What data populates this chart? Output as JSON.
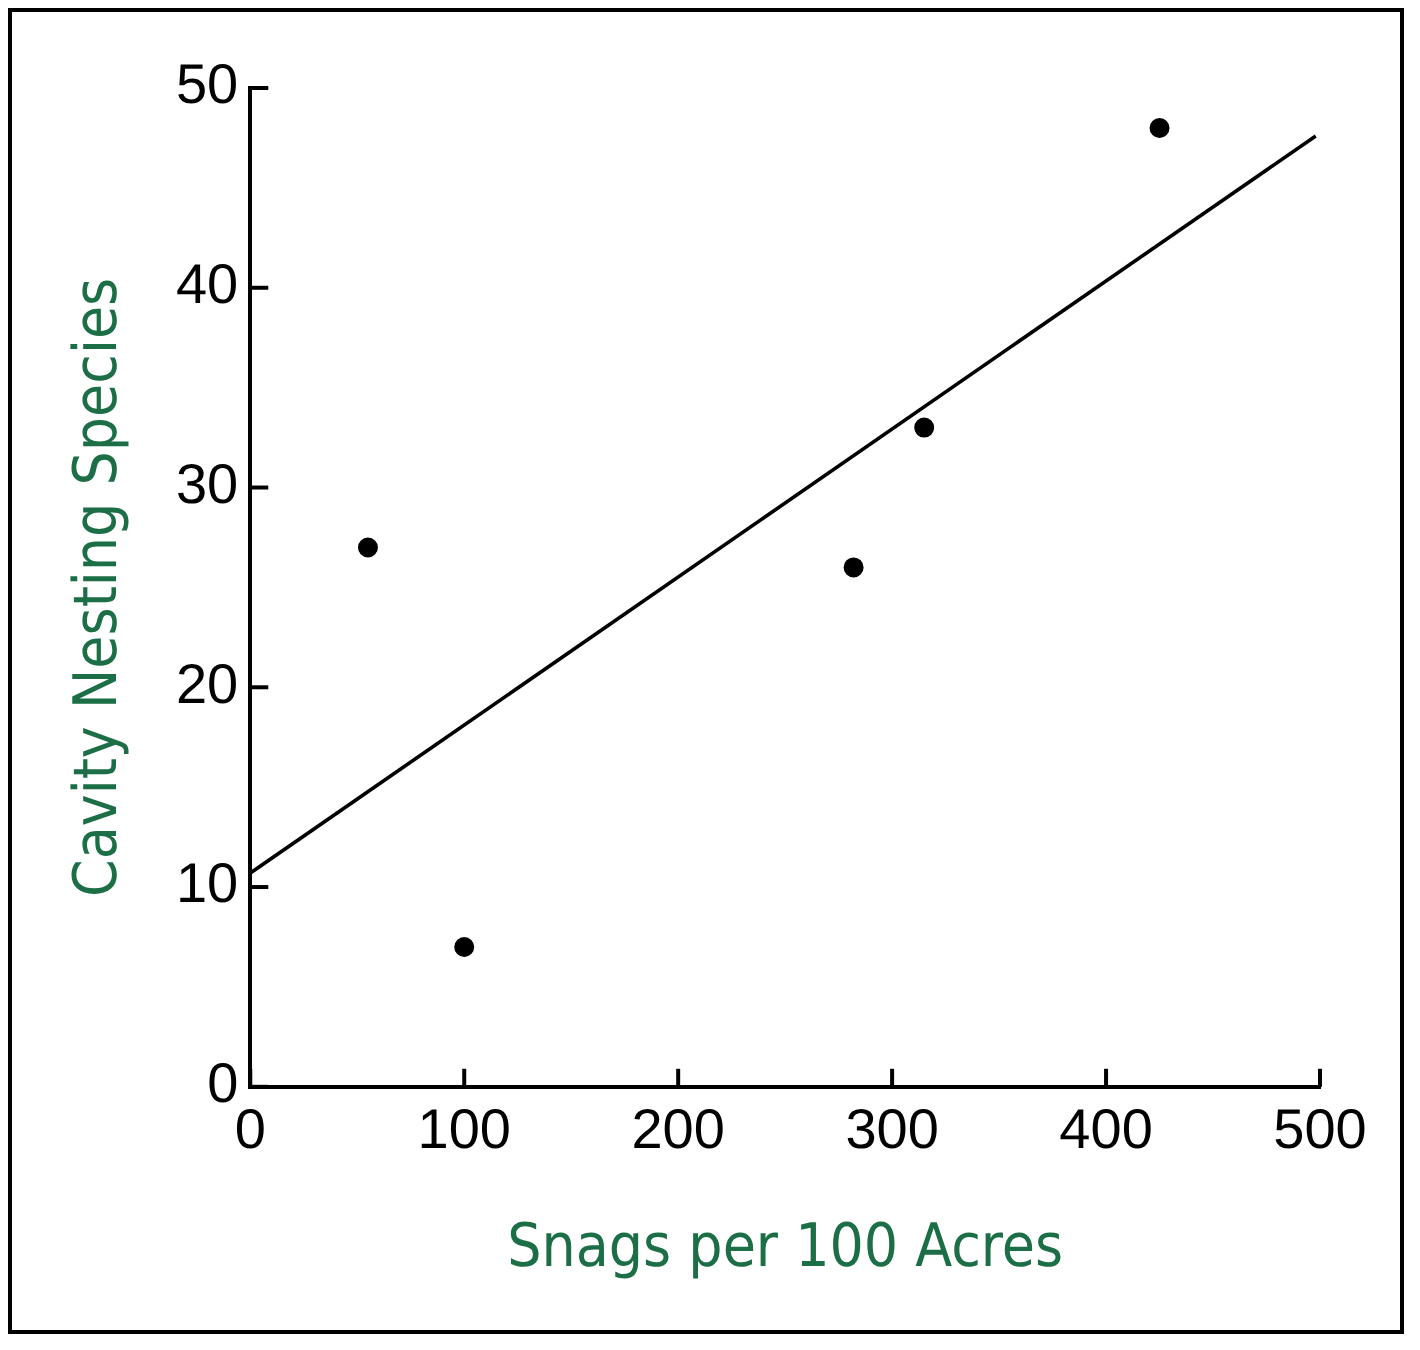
{
  "chart_data": {
    "type": "scatter",
    "xlabel": "Snags per 100 Acres",
    "ylabel": "Cavity Nesting Species",
    "x": [
      55,
      100,
      282,
      315,
      425
    ],
    "series": [
      {
        "color": "#000000",
        "values": [
          27,
          7,
          26,
          33,
          48
        ]
      },
      {
        "type": "line",
        "color": "#000000",
        "marker": "none",
        "x": [
          0,
          498
        ],
        "values": [
          10.7,
          47.6
        ]
      }
    ],
    "xlim": [
      0,
      500
    ],
    "xticks": [
      0,
      100,
      200,
      300,
      400,
      500
    ],
    "ylim": [
      0,
      50
    ],
    "yticks": [
      0,
      10,
      20,
      30,
      40,
      50
    ],
    "grid": false,
    "legend": false,
    "marker": "circle",
    "line_style": "solid"
  }
}
